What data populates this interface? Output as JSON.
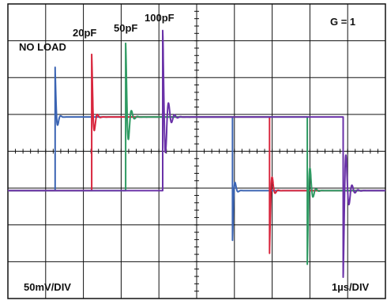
{
  "chart_data": {
    "type": "line",
    "title": "",
    "xlabel": "",
    "ylabel": "",
    "gain_label": "G = 1",
    "vertical_scale": "50mV/DIV",
    "horizontal_scale": "1µs/DIV",
    "x_divisions": 10,
    "y_divisions": 8,
    "grid": true,
    "xlim_div": [
      0,
      10
    ],
    "ylim_div": [
      0,
      8
    ],
    "series": [
      {
        "name": "NO LOAD",
        "color": "#3b64b3",
        "x_div": [
          0,
          1.25,
          1.25,
          5.95,
          5.95,
          10
        ],
        "y_div": [
          2.93,
          2.93,
          4.93,
          4.93,
          2.93,
          2.93
        ],
        "spike_height_div": 1.35,
        "ring_decay": 3
      },
      {
        "name": "20pF",
        "color": "#d8253c",
        "x_div": [
          0,
          2.22,
          2.22,
          6.93,
          6.93,
          10
        ],
        "y_div": [
          2.93,
          2.93,
          4.93,
          4.93,
          2.93,
          2.93
        ],
        "spike_height_div": 1.7,
        "ring_decay": 2.5
      },
      {
        "name": "50pF",
        "color": "#2e9a62",
        "x_div": [
          0,
          3.12,
          3.12,
          7.93,
          7.93,
          10
        ],
        "y_div": [
          2.93,
          2.93,
          4.93,
          4.93,
          2.93,
          2.93
        ],
        "spike_height_div": 2.0,
        "ring_decay": 1.9
      },
      {
        "name": "100pF",
        "color": "#6a32a8",
        "x_div": [
          0,
          4.1,
          4.1,
          8.88,
          8.88,
          10
        ],
        "y_div": [
          2.93,
          2.93,
          4.93,
          4.93,
          2.93,
          2.93
        ],
        "spike_height_div": 2.35,
        "ring_decay": 1.4
      }
    ],
    "annotations": [
      {
        "text": "NO LOAD",
        "series": "NO LOAD"
      },
      {
        "text": "20pF",
        "series": "20pF"
      },
      {
        "text": "50pF",
        "series": "50pF"
      },
      {
        "text": "100pF",
        "series": "100pF"
      }
    ]
  }
}
